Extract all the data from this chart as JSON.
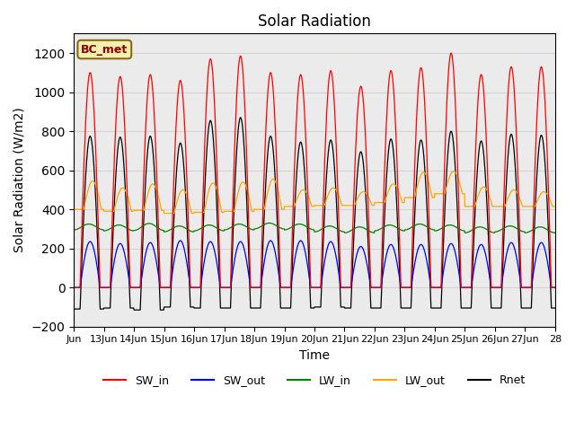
{
  "title": "Solar Radiation",
  "xlabel": "Time",
  "ylabel": "Solar Radiation (W/m2)",
  "ylim": [
    -200,
    1300
  ],
  "yticks": [
    -200,
    0,
    200,
    400,
    600,
    800,
    1000,
    1200
  ],
  "xtick_labels": [
    "Jun",
    "13Jun",
    "14Jun",
    "15Jun",
    "16Jun",
    "17Jun",
    "18Jun",
    "19Jun",
    "20Jun",
    "21Jun",
    "22Jun",
    "23Jun",
    "24Jun",
    "25Jun",
    "26Jun",
    "27Jun",
    "28"
  ],
  "legend_labels": [
    "SW_in",
    "SW_out",
    "LW_in",
    "LW_out",
    "Rnet"
  ],
  "annotation_text": "BC_met",
  "annotation_bg": "#f5f0b0",
  "annotation_border": "#8B6914",
  "grid_color": "#d3d3d3",
  "bg_color": "#ebebeb",
  "n_days": 16,
  "SW_in_peaks": [
    1100,
    1080,
    1090,
    1060,
    1170,
    1185,
    1100,
    1090,
    1110,
    1030,
    1110,
    1125,
    1200,
    1090,
    1130,
    1130
  ],
  "SW_out_peaks": [
    235,
    225,
    230,
    240,
    235,
    235,
    240,
    240,
    235,
    210,
    220,
    220,
    225,
    220,
    230,
    230
  ],
  "LW_in_base": [
    310,
    305,
    310,
    300,
    305,
    310,
    315,
    310,
    300,
    295,
    305,
    310,
    305,
    295,
    300,
    295
  ],
  "LW_in_amp": [
    15,
    15,
    18,
    15,
    15,
    15,
    15,
    15,
    15,
    15,
    15,
    15,
    15,
    15,
    15,
    15
  ],
  "LW_out_base": [
    400,
    390,
    395,
    380,
    385,
    390,
    400,
    415,
    420,
    420,
    435,
    460,
    480,
    415,
    415,
    415
  ],
  "LW_out_peak": [
    545,
    510,
    530,
    500,
    535,
    540,
    555,
    500,
    510,
    490,
    530,
    590,
    595,
    515,
    500,
    490
  ],
  "Rnet_night": [
    -110,
    -105,
    -115,
    -100,
    -105,
    -105,
    -105,
    -105,
    -100,
    -105,
    -105,
    -105,
    -105,
    -105,
    -105,
    -105
  ],
  "sunrise_hour": 5.0,
  "sunset_hour": 21.0,
  "pts_per_hour": 4
}
